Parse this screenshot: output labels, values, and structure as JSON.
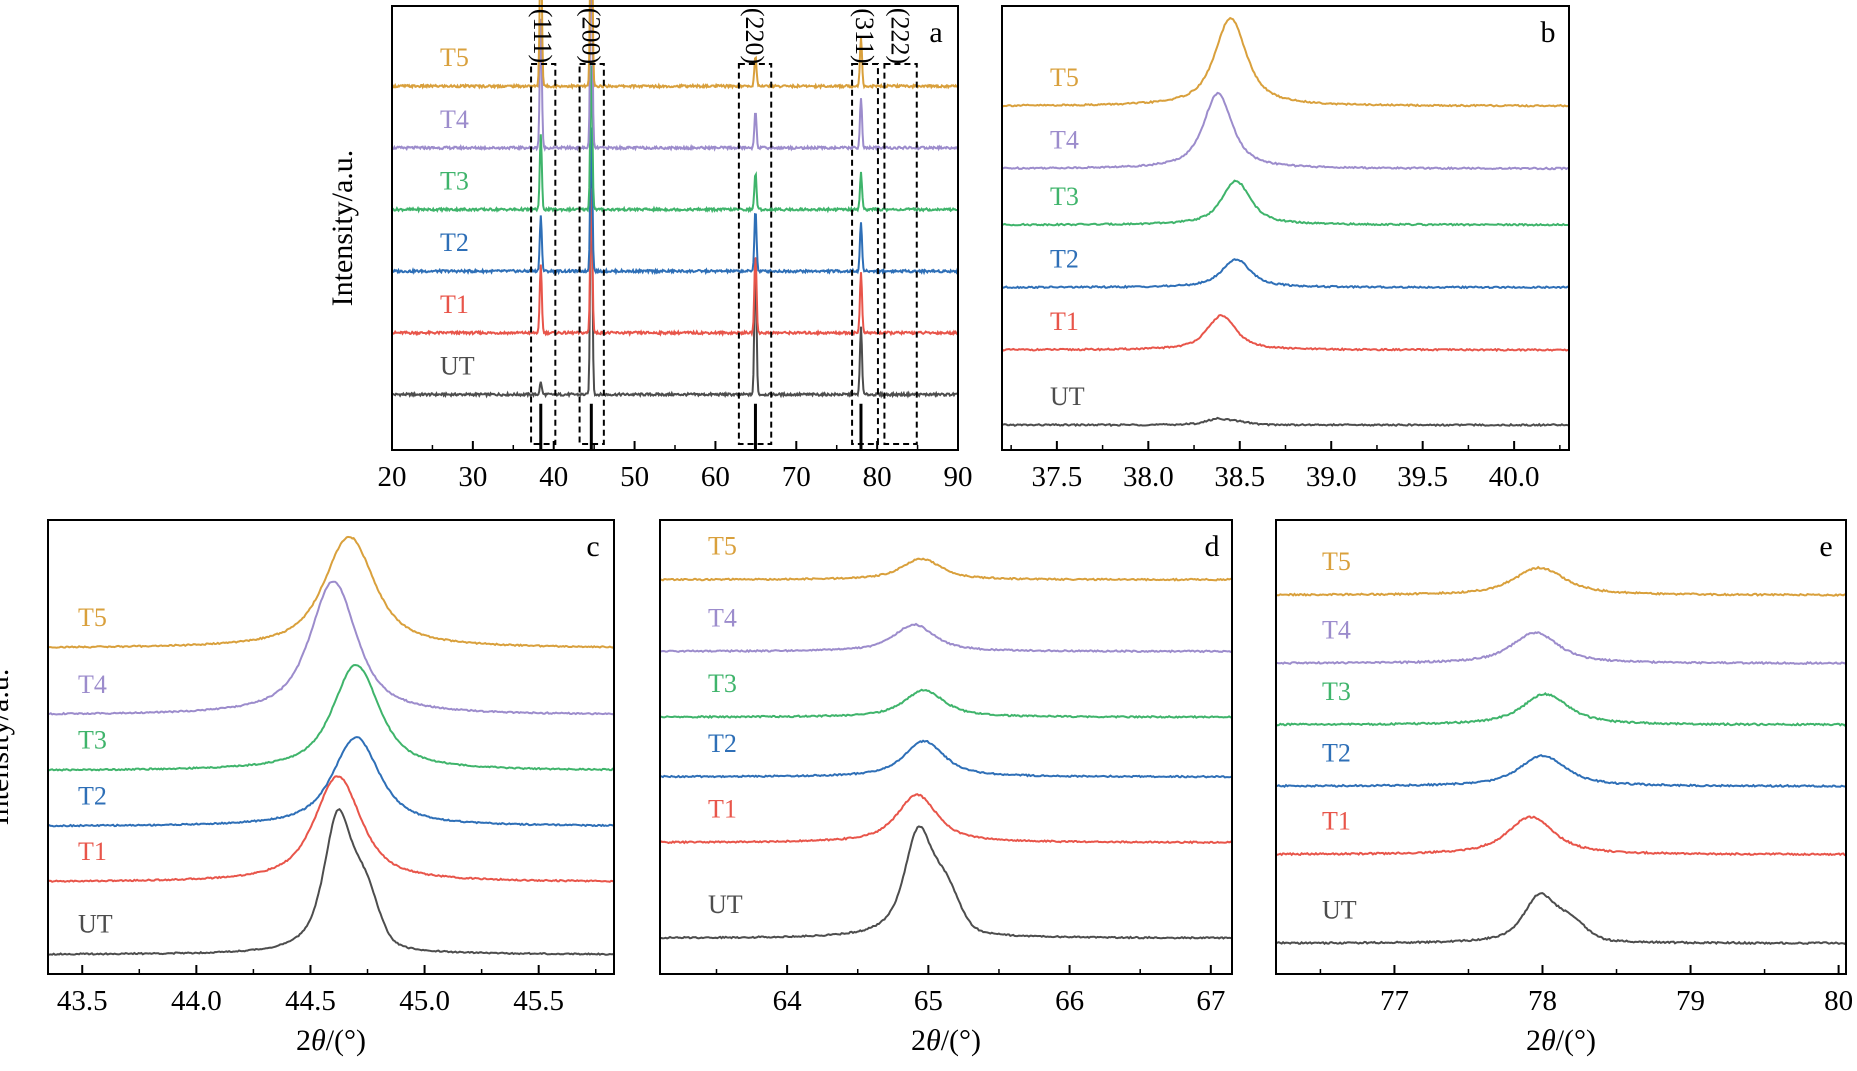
{
  "series_colors": {
    "UT": "#4d4d4d",
    "T1": "#e8554a",
    "T2": "#2e6fb7",
    "T3": "#3fb46b",
    "T4": "#9c8ccc",
    "T5": "#d9a03c"
  },
  "series_order": [
    "UT",
    "T1",
    "T2",
    "T3",
    "T4",
    "T5"
  ],
  "chart_data": [
    {
      "panel": "a",
      "type": "line",
      "xlim": [
        20,
        90
      ],
      "xticks": [
        20,
        30,
        40,
        50,
        60,
        70,
        80,
        90
      ],
      "xtick_labels": [
        "20",
        "30",
        "40",
        "50",
        "60",
        "70",
        "80",
        "90"
      ],
      "ylabel": "Intensity/a.u.",
      "xlabel": "",
      "peaks": [
        {
          "label": "(111)",
          "x": 38.4,
          "box": [
            37.2,
            40.2
          ]
        },
        {
          "label": "(200)",
          "x": 44.65,
          "box": [
            43.2,
            46.2
          ]
        },
        {
          "label": "(220)",
          "x": 64.95,
          "box": [
            62.9,
            66.9
          ]
        },
        {
          "label": "(311)",
          "x": 78.0,
          "box": [
            76.9,
            80.1
          ]
        },
        {
          "label": "(222)",
          "x": 82.4,
          "box": [
            80.9,
            84.9
          ]
        }
      ],
      "reference_lines": [
        38.4,
        44.65,
        64.95,
        78.0
      ],
      "series": [
        {
          "name": "UT",
          "baseline": 0,
          "peak_heights": [
            0.2,
            4.0,
            2.2,
            1.1,
            0
          ]
        },
        {
          "name": "T1",
          "baseline": 1,
          "peak_heights": [
            1.1,
            2.5,
            1.3,
            1.0,
            0
          ]
        },
        {
          "name": "T2",
          "baseline": 2,
          "peak_heights": [
            0.9,
            2.5,
            1.0,
            0.8,
            0
          ]
        },
        {
          "name": "T3",
          "baseline": 3,
          "peak_heights": [
            1.2,
            2.5,
            0.6,
            0.6,
            0
          ]
        },
        {
          "name": "T4",
          "baseline": 4,
          "peak_heights": [
            2.1,
            3.7,
            0.6,
            0.8,
            0
          ]
        },
        {
          "name": "T5",
          "baseline": 5,
          "peak_heights": [
            2.6,
            3.7,
            0.5,
            0.8,
            0
          ]
        }
      ]
    },
    {
      "panel": "b",
      "type": "line",
      "xlim": [
        37.2,
        40.3
      ],
      "xticks": [
        37.5,
        38.0,
        38.5,
        39.0,
        39.5,
        40.0
      ],
      "xtick_labels": [
        "37.5",
        "38.0",
        "38.5",
        "39.0",
        "39.5",
        "40.0"
      ],
      "ylabel": "",
      "xlabel": "",
      "series": [
        {
          "name": "UT",
          "baseline": 0.0,
          "center": 38.38,
          "height": 0.1,
          "width": 0.08
        },
        {
          "name": "T1",
          "baseline": 1.2,
          "center": 38.4,
          "height": 0.55,
          "width": 0.1
        },
        {
          "name": "T2",
          "baseline": 2.2,
          "center": 38.48,
          "height": 0.45,
          "width": 0.1
        },
        {
          "name": "T3",
          "baseline": 3.2,
          "center": 38.48,
          "height": 0.7,
          "width": 0.1
        },
        {
          "name": "T4",
          "baseline": 4.1,
          "center": 38.38,
          "height": 1.2,
          "width": 0.1
        },
        {
          "name": "T5",
          "baseline": 5.1,
          "center": 38.45,
          "height": 1.4,
          "width": 0.11
        }
      ]
    },
    {
      "panel": "c",
      "type": "line",
      "xlim": [
        43.35,
        45.83
      ],
      "xticks": [
        43.5,
        44.0,
        44.5,
        45.0,
        45.5
      ],
      "xtick_labels": [
        "43.5",
        "44.0",
        "44.5",
        "45.0",
        "45.5"
      ],
      "ylabel": "Intensity/a.u.",
      "xlabel": "2θ/(°)",
      "series": [
        {
          "name": "UT",
          "baseline": 0.0,
          "center": 44.62,
          "height": 2.5,
          "width": 0.08
        },
        {
          "name": "T1",
          "baseline": 1.3,
          "center": 44.62,
          "height": 1.9,
          "width": 0.13
        },
        {
          "name": "T2",
          "baseline": 2.3,
          "center": 44.7,
          "height": 1.6,
          "width": 0.13
        },
        {
          "name": "T3",
          "baseline": 3.3,
          "center": 44.7,
          "height": 1.9,
          "width": 0.13
        },
        {
          "name": "T4",
          "baseline": 4.3,
          "center": 44.6,
          "height": 2.4,
          "width": 0.13
        },
        {
          "name": "T5",
          "baseline": 5.5,
          "center": 44.67,
          "height": 2.0,
          "width": 0.14
        }
      ]
    },
    {
      "panel": "d",
      "type": "line",
      "xlim": [
        63.1,
        67.15
      ],
      "xticks": [
        64,
        65,
        66,
        67
      ],
      "xtick_labels": [
        "64",
        "65",
        "66",
        "67"
      ],
      "ylabel": "",
      "xlabel": "2θ/(°)",
      "series": [
        {
          "name": "UT",
          "baseline": 0.0,
          "center": 64.93,
          "height": 1.8,
          "width": 0.13
        },
        {
          "name": "T1",
          "baseline": 1.6,
          "center": 64.92,
          "height": 0.8,
          "width": 0.18
        },
        {
          "name": "T2",
          "baseline": 2.7,
          "center": 64.97,
          "height": 0.6,
          "width": 0.18
        },
        {
          "name": "T3",
          "baseline": 3.7,
          "center": 64.97,
          "height": 0.45,
          "width": 0.18
        },
        {
          "name": "T4",
          "baseline": 4.8,
          "center": 64.9,
          "height": 0.45,
          "width": 0.18
        },
        {
          "name": "T5",
          "baseline": 6.0,
          "center": 64.95,
          "height": 0.35,
          "width": 0.18
        }
      ]
    },
    {
      "panel": "e",
      "type": "line",
      "xlim": [
        76.2,
        80.05
      ],
      "xticks": [
        77,
        78,
        79,
        80
      ],
      "xtick_labels": [
        "77",
        "78",
        "79",
        "80"
      ],
      "ylabel": "",
      "xlabel": "2θ/(°)",
      "series": [
        {
          "name": "UT",
          "baseline": 0.0,
          "center": 77.98,
          "height": 0.7,
          "width": 0.14
        },
        {
          "name": "T1",
          "baseline": 1.3,
          "center": 77.92,
          "height": 0.55,
          "width": 0.2
        },
        {
          "name": "T2",
          "baseline": 2.3,
          "center": 78.0,
          "height": 0.45,
          "width": 0.2
        },
        {
          "name": "T3",
          "baseline": 3.2,
          "center": 78.02,
          "height": 0.45,
          "width": 0.2
        },
        {
          "name": "T4",
          "baseline": 4.1,
          "center": 77.95,
          "height": 0.45,
          "width": 0.2
        },
        {
          "name": "T5",
          "baseline": 5.1,
          "center": 77.98,
          "height": 0.4,
          "width": 0.22
        }
      ]
    }
  ]
}
